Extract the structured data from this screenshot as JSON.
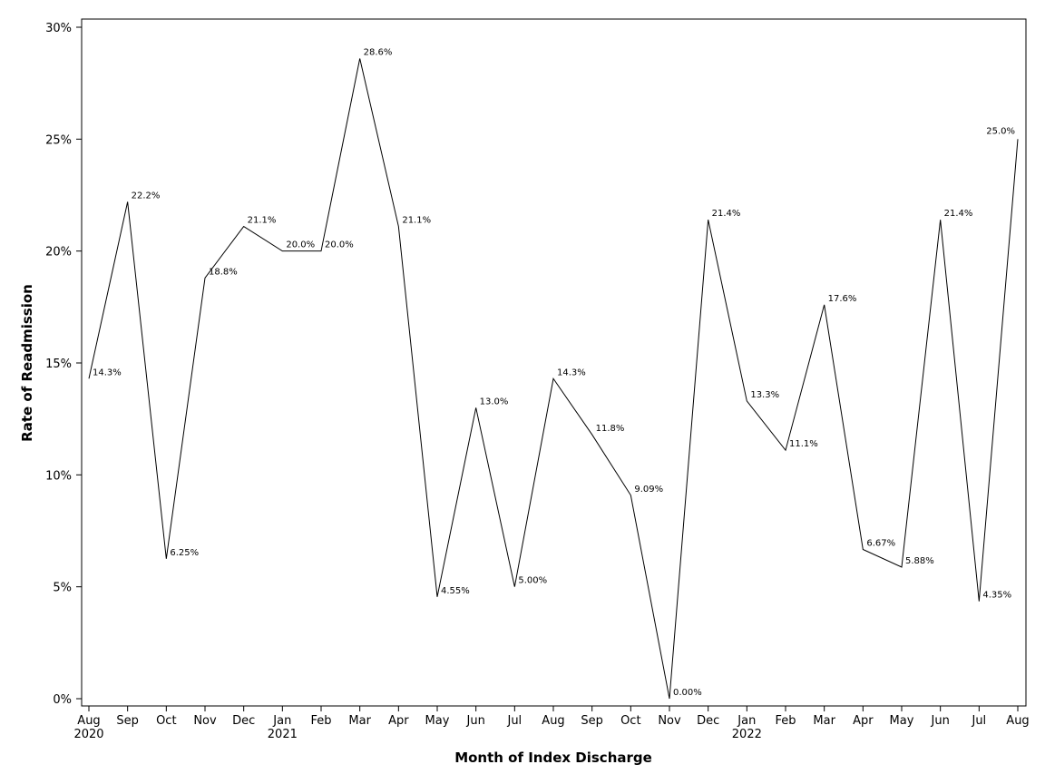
{
  "chart_data": {
    "type": "line",
    "title": "",
    "xlabel": "Month of Index Discharge",
    "ylabel": "Rate of Readmission",
    "ylim": [
      0,
      30
    ],
    "yticks": [
      0,
      5,
      10,
      15,
      20,
      25,
      30
    ],
    "ytick_labels": [
      "0%",
      "5%",
      "10%",
      "15%",
      "20%",
      "25%",
      "30%"
    ],
    "grid": false,
    "x": [
      "Aug",
      "Sep",
      "Oct",
      "Nov",
      "Dec",
      "Jan",
      "Feb",
      "Mar",
      "Apr",
      "May",
      "Jun",
      "Jul",
      "Aug",
      "Sep",
      "Oct",
      "Nov",
      "Dec",
      "Jan",
      "Feb",
      "Mar",
      "Apr",
      "May",
      "Jun",
      "Jul",
      "Aug"
    ],
    "year_labels": [
      "2020",
      "",
      "",
      "",
      "",
      "2021",
      "",
      "",
      "",
      "",
      "",
      "",
      "",
      "",
      "",
      "",
      "",
      "2022",
      "",
      "",
      "",
      "",
      "",
      "",
      ""
    ],
    "series": [
      {
        "values": [
          14.3,
          22.2,
          6.25,
          18.8,
          21.1,
          20.0,
          20.0,
          28.6,
          21.1,
          4.55,
          13.0,
          5.0,
          14.3,
          11.8,
          9.09,
          0.0,
          21.4,
          13.3,
          11.1,
          17.6,
          6.67,
          5.88,
          21.4,
          4.35,
          25.0
        ],
        "labels": [
          "14.3%",
          "22.2%",
          "6.25%",
          "18.8%",
          "21.1%",
          "20.0%",
          "20.0%",
          "28.6%",
          "21.1%",
          "4.55%",
          "13.0%",
          "5.00%",
          "14.3%",
          "11.8%",
          "9.09%",
          "0.00%",
          "21.4%",
          "13.3%",
          "11.1%",
          "17.6%",
          "6.67%",
          "5.88%",
          "21.4%",
          "4.35%",
          "25.0%"
        ]
      }
    ]
  }
}
